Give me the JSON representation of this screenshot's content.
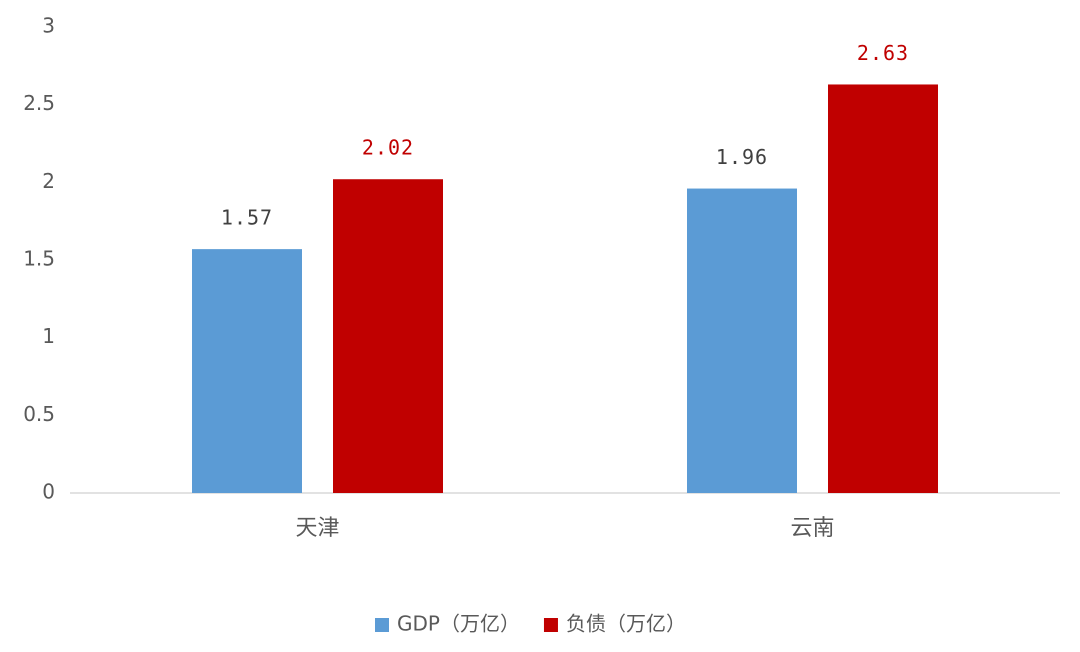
{
  "chart_data": {
    "type": "bar",
    "categories": [
      "天津",
      "云南"
    ],
    "series": [
      {
        "name": "GDP（万亿）",
        "color": "#5b9bd5",
        "values": [
          1.57,
          1.96
        ]
      },
      {
        "name": "负债（万亿）",
        "color": "#c00000",
        "values": [
          2.02,
          2.63
        ]
      }
    ],
    "ylim": [
      0,
      3
    ],
    "yticks": [
      0,
      0.5,
      1,
      1.5,
      2,
      2.5,
      3
    ],
    "grid": false,
    "legend": "bottom",
    "data_labels": true
  }
}
